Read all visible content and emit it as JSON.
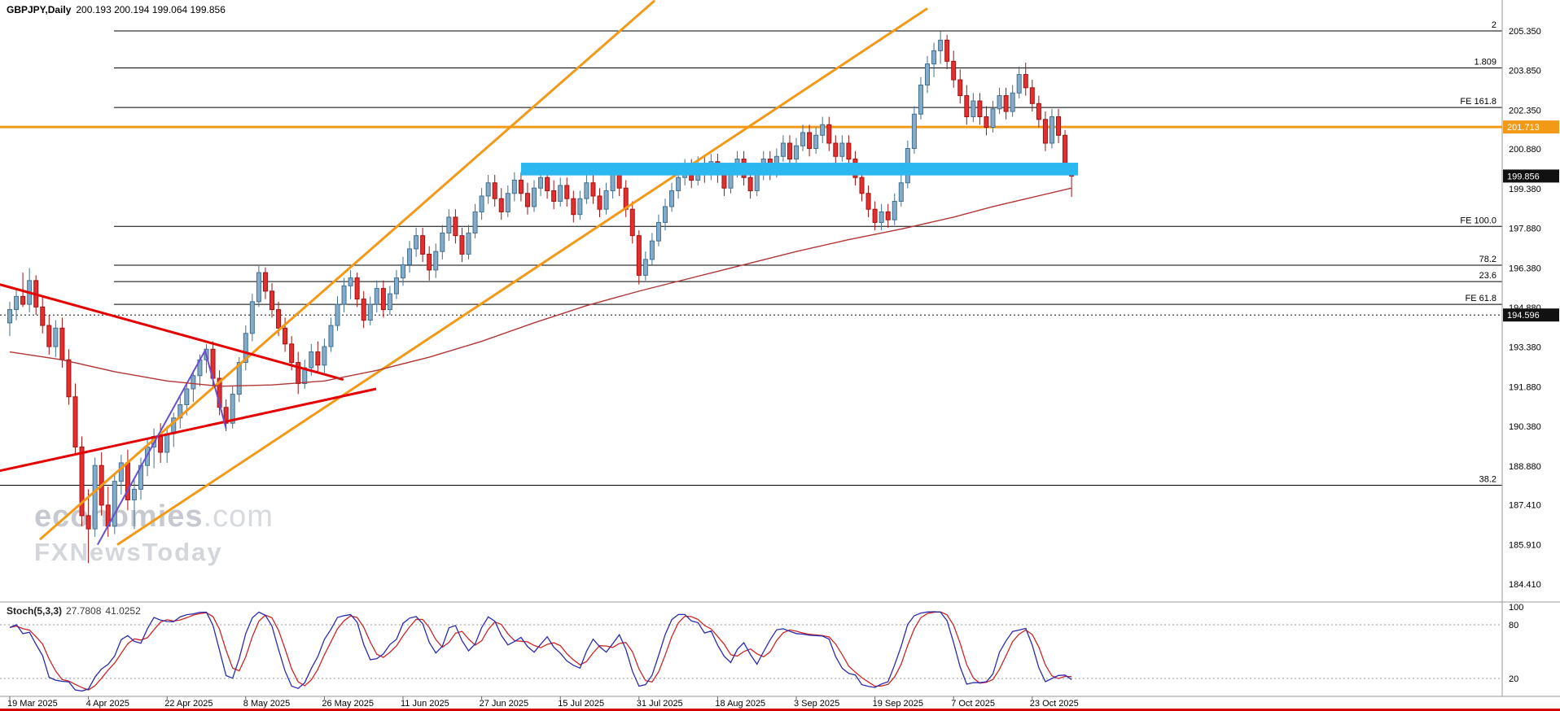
{
  "header": {
    "symbol": "GBPJPY,Daily",
    "ohlc": "200.193 200.194 199.064 199.856"
  },
  "watermark": {
    "brand": "economies",
    "brand_suffix": ".com",
    "line2": "FXNewsToday"
  },
  "indicator": {
    "label": "Stoch(5,3,3)",
    "value_main": "27.7808",
    "value_signal": "41.0252"
  },
  "price_axis": {
    "labels": [
      "205.350",
      "203.850",
      "202.350",
      "200.880",
      "199.380",
      "197.880",
      "196.380",
      "194.880",
      "193.380",
      "191.880",
      "190.380",
      "188.880",
      "187.410",
      "185.910",
      "184.410"
    ]
  },
  "stoch_axis": {
    "labels": [
      "100",
      "80",
      "20"
    ],
    "values": [
      100,
      80,
      20
    ]
  },
  "time_axis": {
    "labels": [
      "19 Mar 2025",
      "4 Apr 2025",
      "22 Apr 2025",
      "8 May 2025",
      "26 May 2025",
      "11 Jun 2025",
      "27 Jun 2025",
      "15 Jul 2025",
      "31 Jul 2025",
      "18 Aug 2025",
      "3 Sep 2025",
      "19 Sep 2025",
      "7 Oct 2025",
      "23 Oct 2025"
    ],
    "tick_indices": [
      0,
      12,
      24,
      36,
      48,
      60,
      72,
      84,
      96,
      108,
      120,
      132,
      144,
      156
    ]
  },
  "colors": {
    "background": "#ffffff",
    "axis_line": "#9a9a9a",
    "bottom_border": "#d40000"
  },
  "chart_data": {
    "type": "candlestick",
    "symbol": "GBPJPY",
    "timeframe": "Daily",
    "last_ohlc": {
      "open": 200.193,
      "high": 200.194,
      "low": 199.064,
      "close": 199.856
    },
    "price_range": [
      184.41,
      205.35
    ],
    "fib_levels": [
      {
        "label": "2",
        "price": 205.35
      },
      {
        "label": "1.809",
        "price": 203.95
      },
      {
        "label": "FE 161.8",
        "price": 202.45
      },
      {
        "label": "FE 100.0",
        "price": 197.95
      },
      {
        "label": "78.2",
        "price": 196.48
      },
      {
        "label": "23.6",
        "price": 195.86
      },
      {
        "label": "FE 61.8",
        "price": 195.0
      },
      {
        "label": "38.2",
        "price": 188.15,
        "full": true
      }
    ],
    "hlines": [
      {
        "price": 201.713,
        "color": "#f29a18",
        "width": 3,
        "style": "solid"
      },
      {
        "price": 194.596,
        "color": "#111111",
        "width": 1,
        "style": "dotted"
      }
    ],
    "price_tags": [
      {
        "text": "201.713",
        "price": 201.713,
        "bg": "#f29a18"
      },
      {
        "text": "199.856",
        "price": 199.856,
        "bg": "#111111"
      },
      {
        "text": "194.596",
        "price": 194.596,
        "bg": "#111111"
      }
    ],
    "resistance_band": {
      "from_index": 78,
      "to_index": 163,
      "price_top": 200.36,
      "price_bottom": 199.88,
      "color": "#2bb7ef"
    },
    "trendlines": [
      {
        "name": "orange-trendline-left",
        "color": "#f29a18",
        "width": 3,
        "points": [
          [
            4.6,
            186.1
          ],
          [
            98.4,
            206.5
          ]
        ]
      },
      {
        "name": "orange-trendline-right",
        "color": "#f29a18",
        "width": 3,
        "points": [
          [
            16.4,
            185.9
          ],
          [
            140.0,
            206.2
          ]
        ]
      },
      {
        "name": "red-triangle-upper",
        "color": "#e40000",
        "width": 3,
        "points": [
          [
            -1.5,
            195.75
          ],
          [
            50.9,
            192.15
          ]
        ]
      },
      {
        "name": "red-triangle-lower",
        "color": "#e40000",
        "width": 3,
        "points": [
          [
            -1.5,
            188.7
          ],
          [
            55.9,
            191.8
          ]
        ]
      },
      {
        "name": "purple-wave",
        "color": "#6a4fd0",
        "width": 2,
        "points": [
          [
            13.4,
            185.9
          ],
          [
            29.8,
            193.25
          ],
          [
            33.0,
            190.3
          ]
        ]
      }
    ],
    "ma_line": {
      "color": "#b23535",
      "points": [
        [
          0,
          193.2
        ],
        [
          8,
          192.9
        ],
        [
          16,
          192.45
        ],
        [
          24,
          192.1
        ],
        [
          32,
          191.9
        ],
        [
          40,
          191.95
        ],
        [
          48,
          192.1
        ],
        [
          56,
          192.5
        ],
        [
          64,
          193.0
        ],
        [
          72,
          193.6
        ],
        [
          80,
          194.3
        ],
        [
          88,
          194.95
        ],
        [
          96,
          195.5
        ],
        [
          104,
          196.0
        ],
        [
          112,
          196.5
        ],
        [
          120,
          197.0
        ],
        [
          128,
          197.45
        ],
        [
          136,
          197.85
        ],
        [
          144,
          198.3
        ],
        [
          150,
          198.7
        ],
        [
          156,
          199.05
        ],
        [
          162,
          199.4
        ]
      ]
    },
    "candle_colors": {
      "up_fill": "#85abcb",
      "up_stroke": "#41708f",
      "down_fill": "#e23030",
      "down_stroke": "#a31010"
    },
    "stochastic": {
      "period": 5,
      "slowing": 3,
      "signal": 3,
      "k": 27.7808,
      "d": 41.0252,
      "levels": [
        20,
        80
      ],
      "k_color": "#2b2bb0",
      "d_color": "#cc2626"
    },
    "ohlc": [
      [
        194.3,
        195.1,
        193.8,
        194.8
      ],
      [
        194.8,
        195.6,
        194.4,
        195.3
      ],
      [
        195.3,
        196.2,
        194.9,
        195.0
      ],
      [
        195.0,
        196.37,
        194.7,
        195.9
      ],
      [
        195.9,
        196.1,
        194.6,
        194.9
      ],
      [
        194.9,
        195.3,
        193.9,
        194.2
      ],
      [
        194.2,
        194.6,
        193.1,
        193.4
      ],
      [
        193.4,
        194.4,
        193.0,
        194.1
      ],
      [
        194.1,
        194.5,
        192.6,
        192.9
      ],
      [
        192.9,
        193.3,
        191.2,
        191.5
      ],
      [
        191.5,
        192.0,
        189.3,
        189.6
      ],
      [
        189.6,
        190.0,
        186.6,
        187.0
      ],
      [
        187.0,
        188.0,
        185.2,
        186.5
      ],
      [
        186.5,
        189.2,
        186.2,
        188.9
      ],
      [
        188.9,
        189.4,
        187.0,
        187.4
      ],
      [
        187.4,
        188.1,
        186.2,
        186.6
      ],
      [
        186.6,
        188.6,
        186.3,
        188.3
      ],
      [
        188.3,
        189.3,
        187.8,
        189.0
      ],
      [
        189.0,
        189.5,
        187.2,
        187.6
      ],
      [
        187.6,
        188.4,
        186.5,
        188.0
      ],
      [
        188.0,
        189.2,
        187.6,
        188.9
      ],
      [
        188.9,
        189.9,
        188.5,
        189.6
      ],
      [
        189.6,
        190.3,
        188.8,
        190.0
      ],
      [
        190.0,
        190.5,
        189.0,
        189.4
      ],
      [
        189.4,
        190.4,
        189.0,
        190.1
      ],
      [
        190.1,
        190.9,
        189.6,
        190.7
      ],
      [
        190.7,
        191.5,
        190.3,
        191.2
      ],
      [
        191.2,
        192.0,
        190.8,
        191.8
      ],
      [
        191.8,
        192.5,
        191.3,
        192.3
      ],
      [
        192.3,
        193.1,
        191.9,
        192.9
      ],
      [
        192.9,
        193.5,
        192.4,
        193.3
      ],
      [
        193.3,
        193.6,
        191.9,
        192.2
      ],
      [
        192.2,
        192.5,
        190.8,
        191.1
      ],
      [
        191.1,
        191.4,
        190.2,
        190.5
      ],
      [
        190.5,
        191.9,
        190.3,
        191.6
      ],
      [
        191.6,
        193.0,
        191.3,
        192.8
      ],
      [
        192.8,
        194.2,
        192.5,
        193.9
      ],
      [
        193.9,
        195.4,
        193.6,
        195.1
      ],
      [
        195.1,
        196.45,
        194.9,
        196.2
      ],
      [
        196.2,
        196.4,
        195.2,
        195.5
      ],
      [
        195.5,
        195.8,
        194.5,
        194.8
      ],
      [
        194.8,
        195.1,
        193.8,
        194.1
      ],
      [
        194.1,
        194.5,
        193.2,
        193.5
      ],
      [
        193.5,
        193.8,
        192.5,
        192.8
      ],
      [
        192.8,
        193.2,
        191.6,
        192.0
      ],
      [
        192.0,
        192.9,
        191.8,
        192.6
      ],
      [
        192.6,
        193.5,
        192.3,
        193.2
      ],
      [
        193.2,
        193.6,
        192.4,
        192.7
      ],
      [
        192.7,
        193.7,
        192.4,
        193.4
      ],
      [
        193.4,
        194.5,
        193.2,
        194.2
      ],
      [
        194.2,
        195.3,
        194.0,
        195.0
      ],
      [
        195.0,
        196.0,
        194.7,
        195.7
      ],
      [
        195.7,
        196.3,
        195.2,
        196.0
      ],
      [
        196.0,
        196.2,
        194.9,
        195.2
      ],
      [
        195.2,
        195.5,
        194.1,
        194.4
      ],
      [
        194.4,
        195.3,
        194.2,
        195.0
      ],
      [
        195.0,
        195.9,
        194.7,
        195.6
      ],
      [
        195.6,
        195.9,
        194.5,
        194.8
      ],
      [
        194.8,
        195.7,
        194.6,
        195.4
      ],
      [
        195.4,
        196.3,
        195.2,
        196.0
      ],
      [
        196.0,
        196.8,
        195.7,
        196.5
      ],
      [
        196.5,
        197.4,
        196.2,
        197.1
      ],
      [
        197.1,
        197.9,
        196.8,
        197.6
      ],
      [
        197.6,
        197.9,
        196.6,
        196.9
      ],
      [
        196.9,
        197.2,
        195.9,
        196.3
      ],
      [
        196.3,
        197.3,
        196.0,
        197.0
      ],
      [
        197.0,
        198.0,
        196.7,
        197.7
      ],
      [
        197.7,
        198.6,
        197.4,
        198.3
      ],
      [
        198.3,
        198.6,
        197.3,
        197.6
      ],
      [
        197.6,
        197.9,
        196.6,
        196.9
      ],
      [
        196.9,
        198.0,
        196.7,
        197.7
      ],
      [
        197.7,
        198.8,
        197.5,
        198.5
      ],
      [
        198.5,
        199.4,
        198.2,
        199.1
      ],
      [
        199.1,
        199.9,
        198.8,
        199.6
      ],
      [
        199.6,
        199.9,
        198.7,
        199.0
      ],
      [
        199.0,
        199.4,
        198.2,
        198.5
      ],
      [
        198.5,
        199.5,
        198.3,
        199.2
      ],
      [
        199.2,
        200.0,
        198.9,
        199.7
      ],
      [
        199.7,
        200.0,
        198.9,
        199.2
      ],
      [
        199.2,
        199.6,
        198.4,
        198.7
      ],
      [
        198.7,
        199.7,
        198.5,
        199.4
      ],
      [
        199.4,
        200.1,
        199.1,
        199.8
      ],
      [
        199.8,
        200.1,
        199.0,
        199.3
      ],
      [
        199.3,
        199.7,
        198.6,
        198.9
      ],
      [
        198.9,
        199.8,
        198.7,
        199.5
      ],
      [
        199.5,
        199.8,
        198.7,
        199.0
      ],
      [
        199.0,
        199.3,
        198.1,
        198.4
      ],
      [
        198.4,
        199.3,
        198.2,
        199.0
      ],
      [
        199.0,
        199.9,
        198.8,
        199.6
      ],
      [
        199.6,
        199.9,
        198.8,
        199.1
      ],
      [
        199.1,
        199.4,
        198.3,
        198.6
      ],
      [
        198.6,
        199.6,
        198.4,
        199.3
      ],
      [
        199.3,
        200.2,
        199.0,
        199.9
      ],
      [
        199.9,
        200.2,
        199.1,
        199.4
      ],
      [
        199.4,
        199.7,
        198.3,
        198.6
      ],
      [
        198.6,
        198.9,
        197.3,
        197.6
      ],
      [
        197.6,
        197.8,
        195.75,
        196.1
      ],
      [
        196.1,
        197.0,
        195.9,
        196.7
      ],
      [
        196.7,
        197.7,
        196.5,
        197.4
      ],
      [
        197.4,
        198.4,
        197.2,
        198.1
      ],
      [
        198.1,
        199.0,
        197.8,
        198.7
      ],
      [
        198.7,
        199.6,
        198.5,
        199.3
      ],
      [
        199.3,
        200.1,
        199.0,
        199.8
      ],
      [
        199.8,
        200.5,
        199.5,
        200.2
      ],
      [
        200.2,
        200.5,
        199.4,
        199.7
      ],
      [
        199.7,
        200.6,
        199.5,
        200.3
      ],
      [
        200.3,
        200.6,
        199.6,
        199.9
      ],
      [
        199.9,
        200.7,
        199.7,
        200.4
      ],
      [
        200.4,
        200.7,
        199.6,
        199.9
      ],
      [
        199.9,
        200.2,
        199.1,
        199.4
      ],
      [
        199.4,
        200.3,
        199.2,
        200.0
      ],
      [
        200.0,
        200.8,
        199.8,
        200.5
      ],
      [
        200.5,
        200.8,
        199.5,
        199.8
      ],
      [
        199.8,
        200.1,
        199.0,
        199.3
      ],
      [
        199.3,
        200.2,
        199.1,
        199.9
      ],
      [
        199.9,
        200.8,
        199.7,
        200.5
      ],
      [
        200.5,
        200.8,
        199.7,
        200.0
      ],
      [
        200.0,
        200.9,
        199.8,
        200.6
      ],
      [
        200.6,
        201.4,
        200.4,
        201.1
      ],
      [
        201.1,
        201.4,
        200.2,
        200.5
      ],
      [
        200.5,
        201.3,
        200.3,
        201.0
      ],
      [
        201.0,
        201.8,
        200.8,
        201.5
      ],
      [
        201.5,
        201.8,
        200.6,
        200.9
      ],
      [
        200.9,
        201.7,
        200.7,
        201.4
      ],
      [
        201.4,
        202.1,
        201.1,
        201.8
      ],
      [
        201.8,
        202.1,
        200.8,
        201.1
      ],
      [
        201.1,
        201.4,
        200.3,
        200.6
      ],
      [
        200.6,
        201.4,
        200.4,
        201.1
      ],
      [
        201.1,
        201.4,
        200.2,
        200.5
      ],
      [
        200.5,
        200.8,
        199.5,
        199.8
      ],
      [
        199.8,
        200.1,
        198.9,
        199.2
      ],
      [
        199.2,
        199.5,
        198.3,
        198.6
      ],
      [
        198.6,
        198.9,
        197.8,
        198.1
      ],
      [
        198.1,
        198.8,
        197.8,
        198.5
      ],
      [
        198.5,
        198.8,
        197.9,
        198.2
      ],
      [
        198.2,
        199.2,
        198.0,
        198.9
      ],
      [
        198.9,
        199.9,
        198.7,
        199.6
      ],
      [
        199.6,
        201.2,
        199.4,
        200.9
      ],
      [
        200.9,
        202.5,
        200.7,
        202.2
      ],
      [
        202.2,
        203.6,
        202.0,
        203.3
      ],
      [
        203.3,
        204.4,
        203.0,
        204.1
      ],
      [
        204.1,
        204.9,
        203.6,
        204.6
      ],
      [
        204.6,
        205.33,
        204.1,
        205.0
      ],
      [
        205.0,
        205.2,
        203.9,
        204.2
      ],
      [
        204.2,
        204.6,
        203.2,
        203.5
      ],
      [
        203.5,
        203.9,
        202.6,
        202.9
      ],
      [
        202.9,
        203.3,
        201.8,
        202.1
      ],
      [
        202.1,
        203.0,
        201.9,
        202.7
      ],
      [
        202.7,
        203.0,
        201.8,
        202.1
      ],
      [
        202.1,
        202.5,
        201.4,
        201.7
      ],
      [
        201.7,
        202.7,
        201.5,
        202.4
      ],
      [
        202.4,
        203.2,
        202.2,
        202.9
      ],
      [
        202.9,
        203.2,
        202.0,
        202.3
      ],
      [
        202.3,
        203.3,
        202.1,
        203.0
      ],
      [
        203.0,
        204.0,
        202.8,
        203.7
      ],
      [
        203.7,
        204.15,
        202.9,
        203.2
      ],
      [
        203.2,
        203.5,
        202.3,
        202.6
      ],
      [
        202.6,
        202.9,
        201.7,
        202.0
      ],
      [
        202.0,
        202.3,
        200.8,
        201.1
      ],
      [
        201.1,
        202.4,
        200.9,
        202.1
      ],
      [
        202.1,
        202.4,
        201.1,
        201.4
      ],
      [
        201.4,
        201.6,
        200.0,
        200.3
      ],
      [
        200.193,
        200.194,
        199.064,
        199.856
      ]
    ]
  }
}
